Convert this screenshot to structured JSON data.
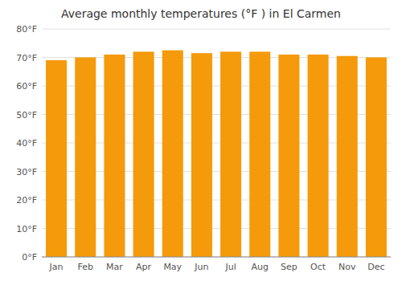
{
  "chart_data": {
    "type": "bar",
    "title": "Average monthly temperatures (°F ) in El Carmen",
    "categories": [
      "Jan",
      "Feb",
      "Mar",
      "Apr",
      "May",
      "Jun",
      "Jul",
      "Aug",
      "Sep",
      "Oct",
      "Nov",
      "Dec"
    ],
    "values": [
      69,
      70,
      71,
      72,
      72.5,
      71.5,
      72,
      72,
      71,
      71,
      70.5,
      70
    ],
    "color": "#F59A0A",
    "ylim": [
      0,
      80
    ],
    "yticks": [
      {
        "value": 0,
        "label": "0°F"
      },
      {
        "value": 10,
        "label": "10°F"
      },
      {
        "value": 20,
        "label": "20°F"
      },
      {
        "value": 30,
        "label": "30°F"
      },
      {
        "value": 40,
        "label": "40°F"
      },
      {
        "value": 50,
        "label": "50°F"
      },
      {
        "value": 60,
        "label": "60°F"
      },
      {
        "value": 70,
        "label": "70°F"
      },
      {
        "value": 80,
        "label": "80°F"
      }
    ],
    "grid": true
  }
}
